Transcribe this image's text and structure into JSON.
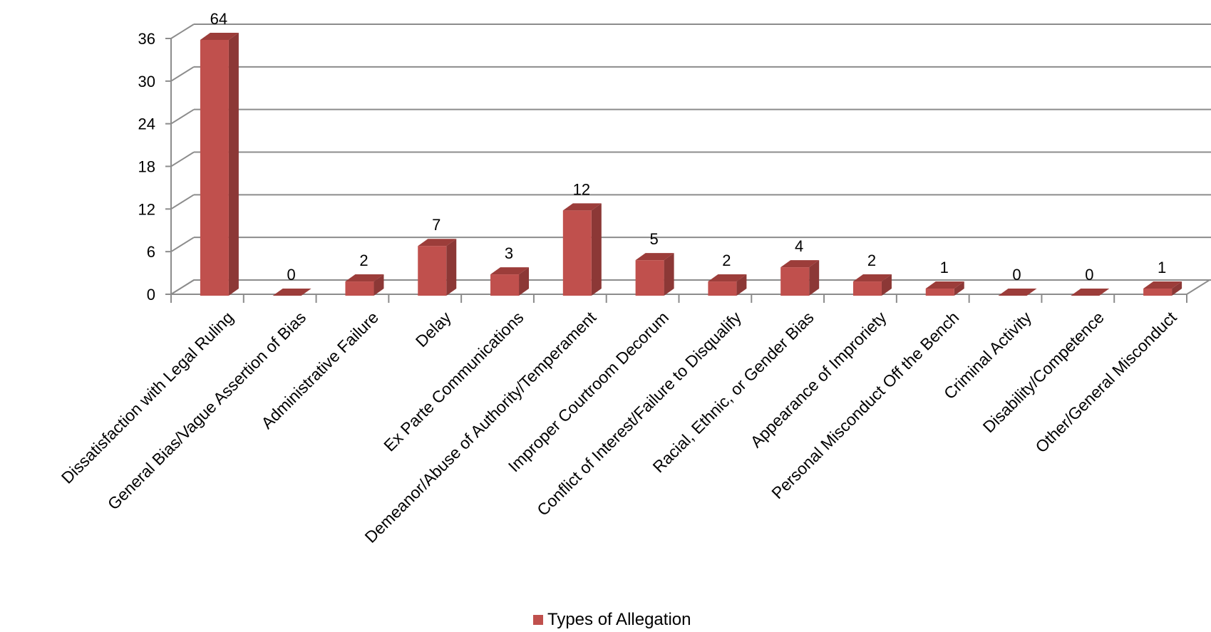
{
  "chart_data": {
    "type": "bar",
    "style": "3d-column",
    "categories": [
      "Dissatisfaction with Legal Ruling",
      "General Bias/Vague Assertion of Bias",
      "Administrative Failure",
      "Delay",
      "Ex Parte Communications",
      "Demeanor/Abuse of Authority/Temperament",
      "Improper Courtroom Decorum",
      "Conflict of Interest/Failure to Disqualify",
      "Racial, Ethnic, or Gender Bias",
      "Appearance of Improriety",
      "Personal Misconduct Off the Bench",
      "Criminal Activity",
      "Disability/Competence",
      "Other/General Misconduct"
    ],
    "series": [
      {
        "name": "Types of Allegation",
        "values": [
          64,
          0,
          2,
          7,
          3,
          12,
          5,
          2,
          4,
          2,
          1,
          0,
          0,
          1
        ],
        "data_labels": [
          "64",
          "0",
          "2",
          "7",
          "3",
          "12",
          "5",
          "2",
          "4",
          "2",
          "1",
          "0",
          "0",
          "1"
        ]
      }
    ],
    "ylim": [
      0,
      36
    ],
    "yticks": [
      0,
      6,
      12,
      18,
      24,
      30,
      36
    ],
    "clipped_at_axis_max": "Dissatisfaction with Legal Ruling",
    "title": "",
    "xlabel": "",
    "ylabel": "",
    "grid": true,
    "legend_position": "bottom",
    "colors": {
      "bar_front": "#c0504d",
      "bar_side": "#8c3836",
      "bar_top": "#9c3d3a",
      "gridline": "#8c8c8c",
      "axis": "#8c8c8c"
    }
  }
}
